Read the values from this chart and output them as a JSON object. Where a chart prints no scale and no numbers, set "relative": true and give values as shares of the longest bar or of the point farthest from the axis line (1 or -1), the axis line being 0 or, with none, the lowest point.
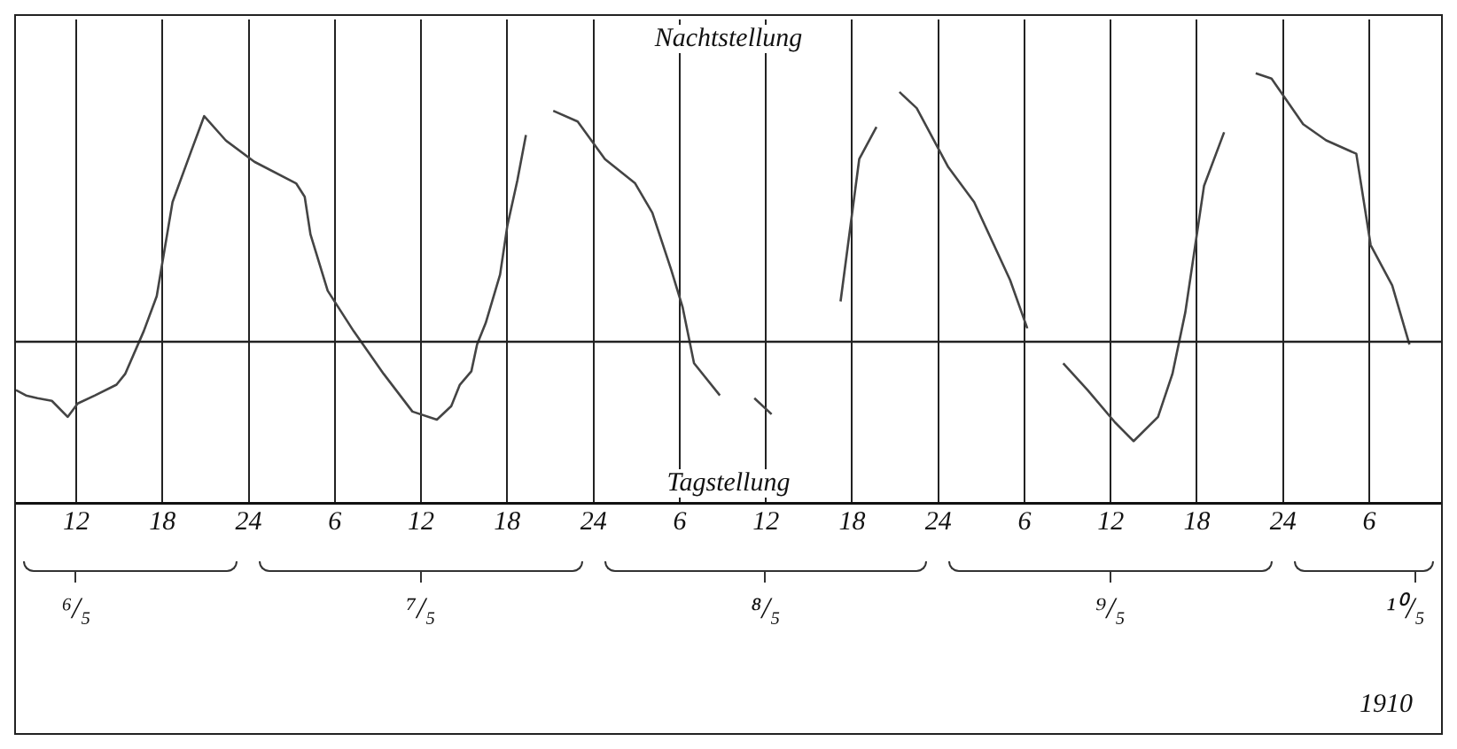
{
  "chart_data": {
    "type": "line",
    "relative": true,
    "annotations": [
      "Nachtstellung",
      "Tagstellung",
      "1910",
      "⁶/₅",
      "⁷/₅",
      "⁸/₅",
      "⁹/₅",
      "¹⁰/₅"
    ],
    "xlim": [
      "1910-05-06T07:48",
      "1910-05-10T11:00"
    ],
    "xticks": [
      {
        "value": "1910-05-06T12:00",
        "label": "12"
      },
      {
        "value": "1910-05-06T18:00",
        "label": "18"
      },
      {
        "value": "1910-05-07T00:00",
        "label": "24"
      },
      {
        "value": "1910-05-07T06:00",
        "label": "6"
      },
      {
        "value": "1910-05-07T12:00",
        "label": "12"
      },
      {
        "value": "1910-05-07T18:00",
        "label": "18"
      },
      {
        "value": "1910-05-08T00:00",
        "label": "24"
      },
      {
        "value": "1910-05-08T06:00",
        "label": "6"
      },
      {
        "value": "1910-05-08T12:00",
        "label": "12"
      },
      {
        "value": "1910-05-08T18:00",
        "label": "18"
      },
      {
        "value": "1910-05-09T00:00",
        "label": "24"
      },
      {
        "value": "1910-05-09T06:00",
        "label": "6"
      },
      {
        "value": "1910-05-09T12:00",
        "label": "12"
      },
      {
        "value": "1910-05-09T18:00",
        "label": "18"
      },
      {
        "value": "1910-05-10T00:00",
        "label": "24"
      },
      {
        "value": "1910-05-10T06:00",
        "label": "6"
      }
    ],
    "ref_lines": [
      {
        "axis": "y",
        "value": 0,
        "color": "#222222"
      }
    ],
    "grid": "x",
    "legend": false,
    "marker": "none",
    "line_style": "solid",
    "series": [
      {
        "color": "#444444",
        "x": [
          "1910-05-06T07:48",
          "1910-05-06T08:30",
          "1910-05-06T09:18",
          "1910-05-06T10:18",
          "1910-05-06T11:24",
          "1910-05-06T12:06",
          "1910-05-06T13:18",
          "1910-05-06T14:48",
          "1910-05-06T15:24",
          "1910-05-06T16:42",
          "1910-05-06T17:36",
          "1910-05-06T18:42",
          "1910-05-06T20:00",
          "1910-05-06T20:54",
          "1910-05-06T22:24",
          "1910-05-07T00:24",
          "1910-05-07T03:18",
          "1910-05-07T03:54",
          "1910-05-07T04:18",
          "1910-05-07T05:30",
          "1910-05-07T07:18",
          "1910-05-07T09:24",
          "1910-05-07T11:24",
          "1910-05-07T13:06",
          "1910-05-07T14:06",
          "1910-05-07T14:42",
          "1910-05-07T15:30",
          "1910-05-07T15:54",
          "1910-05-07T16:30",
          "1910-05-07T17:30",
          "1910-05-07T18:00",
          "1910-05-07T18:42",
          "1910-05-07T19:18",
          "1910-05-07T20:12",
          "1910-05-07T21:12",
          "1910-05-07T22:54",
          "1910-05-08T00:48",
          "1910-05-08T02:54",
          "1910-05-08T04:06",
          "1910-05-08T05:24",
          "1910-05-08T06:12",
          "1910-05-08T07:00",
          "1910-05-08T08:48",
          "1910-05-08T10:18",
          "1910-05-08T11:12",
          "1910-05-08T12:24",
          "1910-05-08T15:00",
          "1910-05-08T17:12",
          "1910-05-08T18:30",
          "1910-05-08T19:42",
          "1910-05-08T20:30",
          "1910-05-08T21:18",
          "1910-05-08T22:30",
          "1910-05-09T00:42",
          "1910-05-09T02:30",
          "1910-05-09T05:00",
          "1910-05-09T06:12",
          "1910-05-09T07:30",
          "1910-05-09T08:42",
          "1910-05-09T10:24",
          "1910-05-09T12:18",
          "1910-05-09T13:36",
          "1910-05-09T15:18",
          "1910-05-09T16:18",
          "1910-05-09T17:12",
          "1910-05-09T18:30",
          "1910-05-09T19:54",
          "1910-05-09T21:00",
          "1910-05-09T22:06",
          "1910-05-09T23:12",
          "1910-05-10T01:24",
          "1910-05-10T03:00",
          "1910-05-10T05:06",
          "1910-05-10T06:06",
          "1910-05-10T07:36",
          "1910-05-10T08:48"
        ],
        "values": [
          -0.18,
          -0.2,
          -0.21,
          -0.22,
          -0.28,
          -0.23,
          -0.2,
          -0.16,
          -0.12,
          0.04,
          0.17,
          0.52,
          0.71,
          0.84,
          0.75,
          0.67,
          0.59,
          0.54,
          0.4,
          0.19,
          0.04,
          -0.12,
          -0.26,
          -0.29,
          -0.24,
          -0.16,
          -0.11,
          -0.01,
          0.07,
          0.25,
          0.43,
          0.6,
          0.77,
          null,
          0.86,
          0.82,
          0.68,
          0.59,
          0.48,
          0.27,
          0.13,
          -0.08,
          -0.2,
          null,
          -0.21,
          -0.27,
          null,
          0.15,
          0.68,
          0.8,
          null,
          0.93,
          0.87,
          0.65,
          0.52,
          0.23,
          0.05,
          null,
          -0.08,
          -0.18,
          -0.3,
          -0.37,
          -0.28,
          -0.12,
          0.11,
          0.58,
          0.78,
          null,
          1.0,
          0.98,
          0.81,
          0.75,
          0.7,
          0.36,
          0.21,
          -0.01
        ]
      }
    ]
  }
}
